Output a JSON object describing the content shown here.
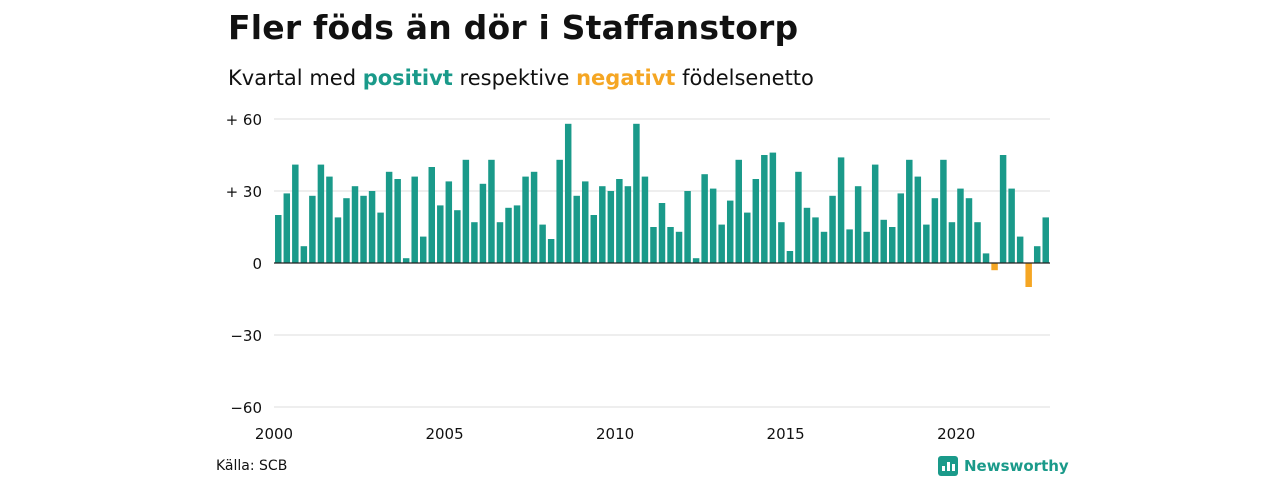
{
  "header": {
    "title": "Fler föds än dör i Staffanstorp",
    "subtitle_prefix": "Kvartal med",
    "subtitle_positive": "positivt",
    "subtitle_middle": "respektive",
    "subtitle_negative": "negativt",
    "subtitle_suffix": "födelsenetto"
  },
  "footer": {
    "source": "Källa: SCB",
    "brand": "Newsworthy"
  },
  "colors": {
    "positive": "#1a9a8a",
    "negative": "#f5a623",
    "grid": "#dddddd",
    "zero_line": "#222222"
  },
  "chart_data": {
    "type": "bar",
    "title": "Fler föds än dör i Staffanstorp",
    "xlabel": "",
    "ylabel": "",
    "x_start": "2000 Q1",
    "frequency": "quarterly",
    "ylim": [
      -60,
      60
    ],
    "yticks": [
      60,
      30,
      0,
      -30,
      -60
    ],
    "ytick_labels": [
      "+ 60",
      "+ 30",
      "0",
      "−30",
      "−60"
    ],
    "xtick_labels": [
      "2000",
      "2005",
      "2010",
      "2015",
      "2020"
    ],
    "grid": true,
    "values": [
      20,
      29,
      41,
      7,
      28,
      41,
      36,
      19,
      27,
      32,
      28,
      30,
      21,
      38,
      35,
      2,
      36,
      11,
      40,
      24,
      34,
      22,
      43,
      17,
      33,
      43,
      17,
      23,
      24,
      36,
      38,
      16,
      10,
      43,
      58,
      28,
      34,
      20,
      32,
      30,
      35,
      32,
      58,
      36,
      15,
      25,
      15,
      13,
      30,
      2,
      37,
      31,
      16,
      26,
      43,
      21,
      35,
      45,
      46,
      17,
      5,
      38,
      23,
      19,
      13,
      28,
      44,
      14,
      32,
      13,
      41,
      18,
      15,
      29,
      43,
      36,
      16,
      27,
      43,
      17,
      31,
      27,
      17,
      4,
      -3,
      45,
      31,
      11,
      -10,
      7,
      19
    ]
  }
}
